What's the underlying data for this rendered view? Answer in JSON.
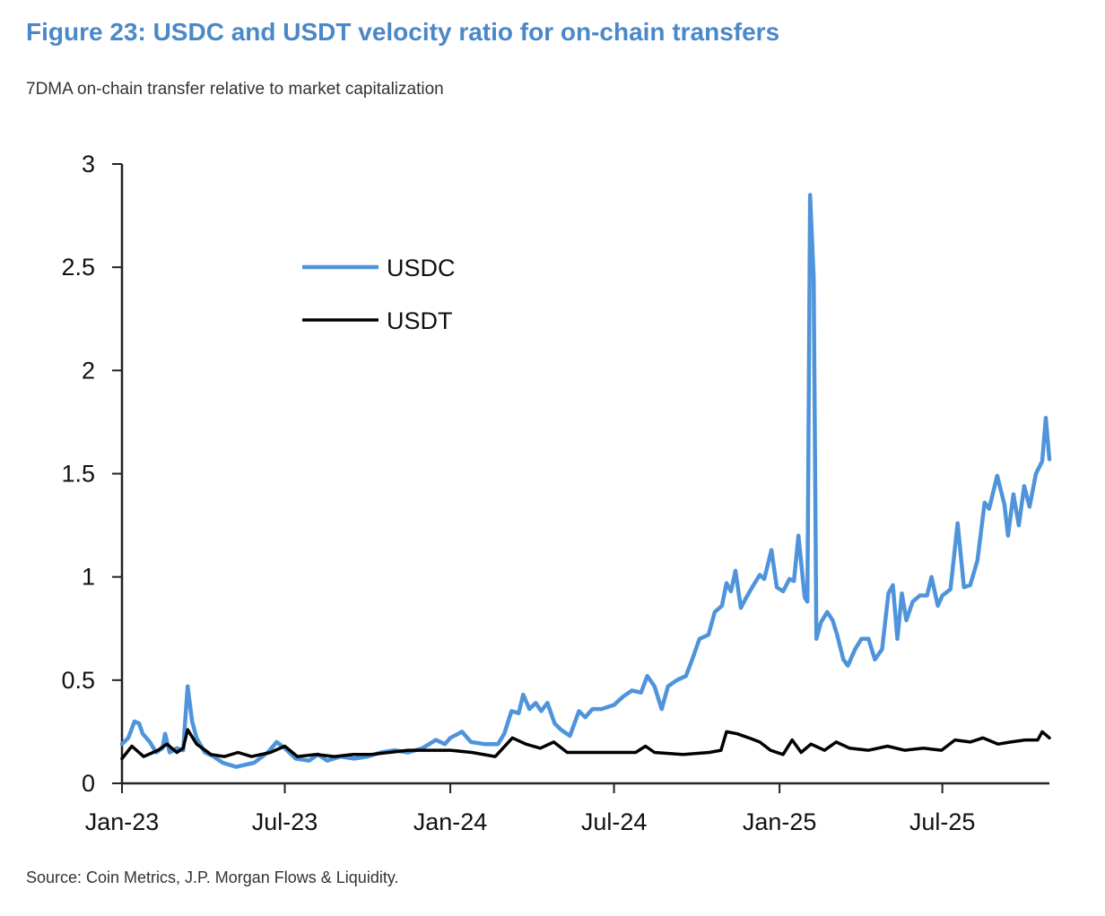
{
  "title": "Figure 23: USDC and USDT velocity ratio for on-chain transfers",
  "subtitle": "7DMA on-chain transfer relative to market capitalization",
  "source": "Source: Coin Metrics, J.P. Morgan Flows & Liquidity.",
  "chart_data": {
    "type": "line",
    "title": "Figure 23: USDC and USDT velocity ratio for on-chain transfers",
    "subtitle": "7DMA on-chain transfer relative to market capitalization",
    "xlabel": "",
    "ylabel": "",
    "ylim": [
      0,
      3
    ],
    "xlim": [
      "2023-01-01",
      "2025-10-28"
    ],
    "yticks": [
      "0",
      "0.5",
      "1",
      "1.5",
      "2",
      "2.5",
      "3"
    ],
    "xticks": [
      {
        "date": "2023-01-01",
        "label": "Jan-23"
      },
      {
        "date": "2023-07-01",
        "label": "Jul-23"
      },
      {
        "date": "2024-01-01",
        "label": "Jan-24"
      },
      {
        "date": "2024-07-01",
        "label": "Jul-24"
      },
      {
        "date": "2025-01-01",
        "label": "Jan-25"
      },
      {
        "date": "2025-07-01",
        "label": "Jul-25"
      }
    ],
    "grid": false,
    "legend_position": "upper-left",
    "series": [
      {
        "name": "USDC",
        "color": "#4f94da",
        "points": [
          [
            "2023-01-01",
            0.19
          ],
          [
            "2023-01-08",
            0.22
          ],
          [
            "2023-01-15",
            0.3
          ],
          [
            "2023-01-20",
            0.29
          ],
          [
            "2023-01-24",
            0.24
          ],
          [
            "2023-02-01",
            0.2
          ],
          [
            "2023-02-08",
            0.15
          ],
          [
            "2023-02-15",
            0.17
          ],
          [
            "2023-02-18",
            0.24
          ],
          [
            "2023-02-23",
            0.15
          ],
          [
            "2023-03-03",
            0.17
          ],
          [
            "2023-03-10",
            0.16
          ],
          [
            "2023-03-15",
            0.47
          ],
          [
            "2023-03-20",
            0.3
          ],
          [
            "2023-03-25",
            0.22
          ],
          [
            "2023-04-03",
            0.15
          ],
          [
            "2023-04-13",
            0.13
          ],
          [
            "2023-04-23",
            0.1
          ],
          [
            "2023-05-08",
            0.08
          ],
          [
            "2023-05-28",
            0.1
          ],
          [
            "2023-06-12",
            0.15
          ],
          [
            "2023-06-22",
            0.2
          ],
          [
            "2023-07-01",
            0.17
          ],
          [
            "2023-07-13",
            0.12
          ],
          [
            "2023-07-28",
            0.11
          ],
          [
            "2023-08-07",
            0.14
          ],
          [
            "2023-08-17",
            0.11
          ],
          [
            "2023-09-01",
            0.13
          ],
          [
            "2023-09-16",
            0.12
          ],
          [
            "2023-10-01",
            0.13
          ],
          [
            "2023-10-16",
            0.15
          ],
          [
            "2023-10-31",
            0.16
          ],
          [
            "2023-11-15",
            0.15
          ],
          [
            "2023-12-01",
            0.17
          ],
          [
            "2023-12-16",
            0.21
          ],
          [
            "2023-12-26",
            0.19
          ],
          [
            "2024-01-01",
            0.22
          ],
          [
            "2024-01-14",
            0.25
          ],
          [
            "2024-01-24",
            0.2
          ],
          [
            "2024-02-08",
            0.19
          ],
          [
            "2024-02-23",
            0.19
          ],
          [
            "2024-03-01",
            0.24
          ],
          [
            "2024-03-09",
            0.35
          ],
          [
            "2024-03-17",
            0.34
          ],
          [
            "2024-03-22",
            0.43
          ],
          [
            "2024-03-29",
            0.36
          ],
          [
            "2024-04-05",
            0.39
          ],
          [
            "2024-04-11",
            0.35
          ],
          [
            "2024-04-18",
            0.39
          ],
          [
            "2024-04-26",
            0.29
          ],
          [
            "2024-05-03",
            0.26
          ],
          [
            "2024-05-13",
            0.23
          ],
          [
            "2024-05-23",
            0.35
          ],
          [
            "2024-05-30",
            0.32
          ],
          [
            "2024-06-07",
            0.36
          ],
          [
            "2024-06-17",
            0.36
          ],
          [
            "2024-07-01",
            0.38
          ],
          [
            "2024-07-11",
            0.42
          ],
          [
            "2024-07-21",
            0.45
          ],
          [
            "2024-07-31",
            0.44
          ],
          [
            "2024-08-07",
            0.52
          ],
          [
            "2024-08-15",
            0.47
          ],
          [
            "2024-08-23",
            0.36
          ],
          [
            "2024-08-30",
            0.47
          ],
          [
            "2024-09-09",
            0.5
          ],
          [
            "2024-09-19",
            0.52
          ],
          [
            "2024-09-26",
            0.6
          ],
          [
            "2024-10-04",
            0.7
          ],
          [
            "2024-10-14",
            0.72
          ],
          [
            "2024-10-21",
            0.83
          ],
          [
            "2024-10-29",
            0.86
          ],
          [
            "2024-11-03",
            0.97
          ],
          [
            "2024-11-08",
            0.93
          ],
          [
            "2024-11-13",
            1.03
          ],
          [
            "2024-11-19",
            0.85
          ],
          [
            "2024-11-25",
            0.9
          ],
          [
            "2024-12-03",
            0.96
          ],
          [
            "2024-12-10",
            1.01
          ],
          [
            "2024-12-15",
            0.99
          ],
          [
            "2024-12-23",
            1.13
          ],
          [
            "2024-12-29",
            0.95
          ],
          [
            "2025-01-05",
            0.93
          ],
          [
            "2025-01-12",
            0.99
          ],
          [
            "2025-01-17",
            0.98
          ],
          [
            "2025-01-22",
            1.2
          ],
          [
            "2025-01-29",
            0.9
          ],
          [
            "2025-02-01",
            0.88
          ],
          [
            "2025-02-04",
            2.85
          ],
          [
            "2025-02-08",
            2.45
          ],
          [
            "2025-02-11",
            0.7
          ],
          [
            "2025-02-16",
            0.78
          ],
          [
            "2025-02-23",
            0.83
          ],
          [
            "2025-03-01",
            0.79
          ],
          [
            "2025-03-06",
            0.72
          ],
          [
            "2025-03-13",
            0.6
          ],
          [
            "2025-03-18",
            0.57
          ],
          [
            "2025-03-26",
            0.65
          ],
          [
            "2025-04-02",
            0.7
          ],
          [
            "2025-04-10",
            0.7
          ],
          [
            "2025-04-17",
            0.6
          ],
          [
            "2025-04-25",
            0.65
          ],
          [
            "2025-05-02",
            0.92
          ],
          [
            "2025-05-07",
            0.96
          ],
          [
            "2025-05-12",
            0.7
          ],
          [
            "2025-05-17",
            0.92
          ],
          [
            "2025-05-22",
            0.79
          ],
          [
            "2025-05-29",
            0.88
          ],
          [
            "2025-06-06",
            0.91
          ],
          [
            "2025-06-14",
            0.91
          ],
          [
            "2025-06-19",
            1.0
          ],
          [
            "2025-06-26",
            0.86
          ],
          [
            "2025-07-01",
            0.91
          ],
          [
            "2025-07-10",
            0.94
          ],
          [
            "2025-07-18",
            1.26
          ],
          [
            "2025-07-25",
            0.95
          ],
          [
            "2025-08-01",
            0.96
          ],
          [
            "2025-08-09",
            1.08
          ],
          [
            "2025-08-17",
            1.36
          ],
          [
            "2025-08-22",
            1.33
          ],
          [
            "2025-08-31",
            1.49
          ],
          [
            "2025-09-08",
            1.35
          ],
          [
            "2025-09-12",
            1.2
          ],
          [
            "2025-09-18",
            1.4
          ],
          [
            "2025-09-24",
            1.25
          ],
          [
            "2025-09-30",
            1.44
          ],
          [
            "2025-10-06",
            1.34
          ],
          [
            "2025-10-13",
            1.5
          ],
          [
            "2025-10-20",
            1.56
          ],
          [
            "2025-10-24",
            1.77
          ],
          [
            "2025-10-28",
            1.57
          ]
        ]
      },
      {
        "name": "USDT",
        "color": "#000000",
        "points": [
          [
            "2023-01-01",
            0.12
          ],
          [
            "2023-01-12",
            0.18
          ],
          [
            "2023-01-25",
            0.13
          ],
          [
            "2023-02-10",
            0.16
          ],
          [
            "2023-02-20",
            0.19
          ],
          [
            "2023-03-03",
            0.15
          ],
          [
            "2023-03-10",
            0.17
          ],
          [
            "2023-03-15",
            0.26
          ],
          [
            "2023-03-25",
            0.19
          ],
          [
            "2023-04-10",
            0.14
          ],
          [
            "2023-04-25",
            0.13
          ],
          [
            "2023-05-10",
            0.15
          ],
          [
            "2023-05-25",
            0.13
          ],
          [
            "2023-06-15",
            0.15
          ],
          [
            "2023-07-01",
            0.18
          ],
          [
            "2023-07-15",
            0.13
          ],
          [
            "2023-08-05",
            0.14
          ],
          [
            "2023-08-25",
            0.13
          ],
          [
            "2023-09-15",
            0.14
          ],
          [
            "2023-10-05",
            0.14
          ],
          [
            "2023-10-25",
            0.15
          ],
          [
            "2023-11-15",
            0.16
          ],
          [
            "2023-12-10",
            0.16
          ],
          [
            "2024-01-01",
            0.16
          ],
          [
            "2024-01-25",
            0.15
          ],
          [
            "2024-02-20",
            0.13
          ],
          [
            "2024-03-10",
            0.22
          ],
          [
            "2024-03-25",
            0.19
          ],
          [
            "2024-04-10",
            0.17
          ],
          [
            "2024-04-25",
            0.2
          ],
          [
            "2024-05-10",
            0.15
          ],
          [
            "2024-06-01",
            0.15
          ],
          [
            "2024-07-01",
            0.15
          ],
          [
            "2024-07-25",
            0.15
          ],
          [
            "2024-08-05",
            0.18
          ],
          [
            "2024-08-15",
            0.15
          ],
          [
            "2024-09-15",
            0.14
          ],
          [
            "2024-10-15",
            0.15
          ],
          [
            "2024-10-28",
            0.16
          ],
          [
            "2024-11-03",
            0.25
          ],
          [
            "2024-11-15",
            0.24
          ],
          [
            "2024-11-28",
            0.22
          ],
          [
            "2024-12-10",
            0.2
          ],
          [
            "2024-12-22",
            0.16
          ],
          [
            "2025-01-05",
            0.14
          ],
          [
            "2025-01-15",
            0.21
          ],
          [
            "2025-01-25",
            0.15
          ],
          [
            "2025-02-05",
            0.19
          ],
          [
            "2025-02-20",
            0.16
          ],
          [
            "2025-03-05",
            0.2
          ],
          [
            "2025-03-20",
            0.17
          ],
          [
            "2025-04-10",
            0.16
          ],
          [
            "2025-05-01",
            0.18
          ],
          [
            "2025-05-20",
            0.16
          ],
          [
            "2025-06-10",
            0.17
          ],
          [
            "2025-06-30",
            0.16
          ],
          [
            "2025-07-15",
            0.21
          ],
          [
            "2025-08-01",
            0.2
          ],
          [
            "2025-08-15",
            0.22
          ],
          [
            "2025-09-01",
            0.19
          ],
          [
            "2025-09-15",
            0.2
          ],
          [
            "2025-10-01",
            0.21
          ],
          [
            "2025-10-15",
            0.21
          ],
          [
            "2025-10-20",
            0.25
          ],
          [
            "2025-10-28",
            0.22
          ]
        ]
      }
    ]
  }
}
